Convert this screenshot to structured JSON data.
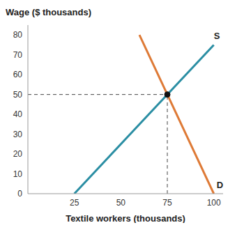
{
  "chart_data": {
    "type": "line",
    "x_label": "Textile workers (thousands)",
    "y_label": "Wage ($ thousands)",
    "xlim": [
      0,
      105
    ],
    "xticks": [
      25,
      50,
      75,
      100
    ],
    "ylim": [
      0,
      85
    ],
    "yticks": [
      0,
      10,
      20,
      30,
      40,
      50,
      60,
      70,
      80
    ],
    "grid": false,
    "series": [
      {
        "name": "S",
        "color": "#2a8ea3",
        "x": [
          25,
          100
        ],
        "values": [
          0,
          75
        ]
      },
      {
        "name": "D",
        "color": "#de7a36",
        "x": [
          60,
          100
        ],
        "values": [
          80,
          0
        ]
      }
    ],
    "equilibrium": {
      "x": 75,
      "y": 50
    }
  }
}
